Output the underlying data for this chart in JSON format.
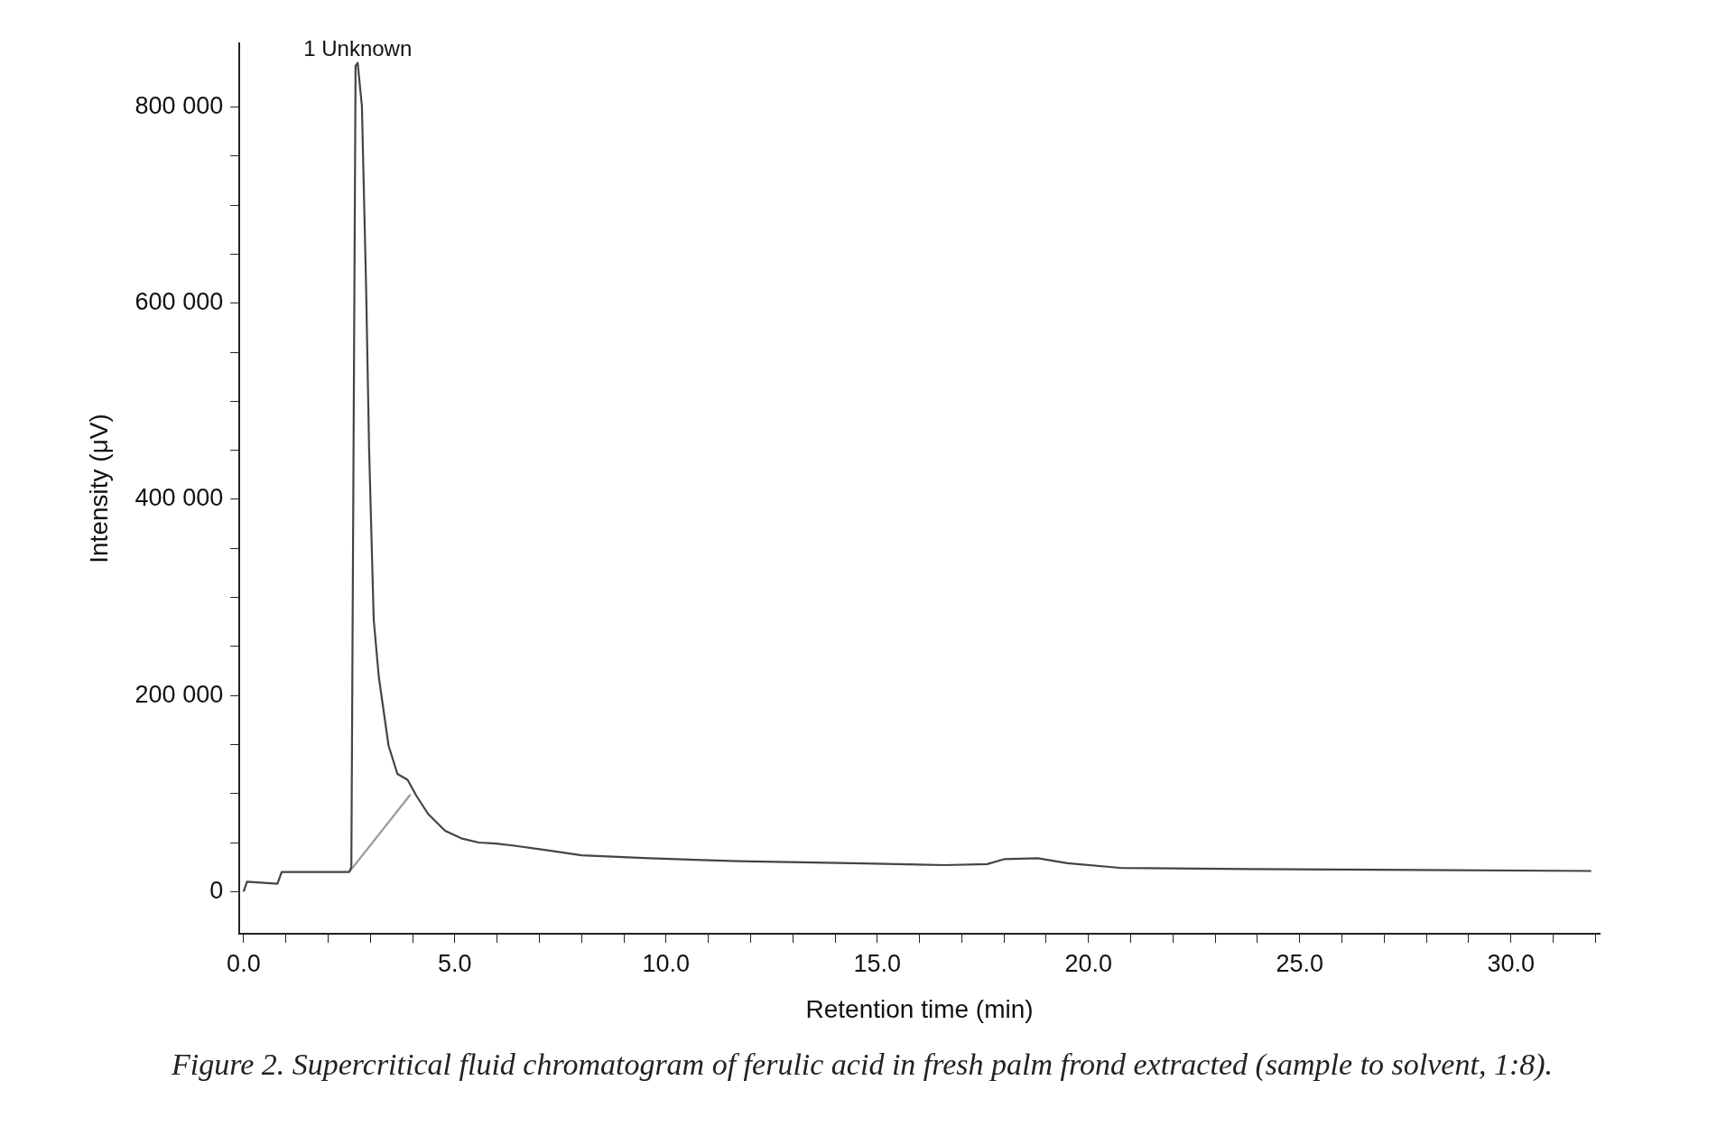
{
  "chart_data": {
    "type": "line",
    "xlabel": "Retention time (min)",
    "ylabel": "Intensity (μV)",
    "annotations": [
      {
        "text": "1 Unknown",
        "x": 2.7,
        "y": 845000
      },
      "Figure 2. Supercritical fluid chromatogram of ferulic acid in fresh palm frond extracted (sample to solvent, 1:8)."
    ],
    "series": [
      {
        "color": "#444444",
        "x": [
          0,
          0.08,
          0.8,
          0.9,
          2.5,
          2.55,
          2.65,
          2.7,
          2.8,
          2.9,
          2.97,
          3.08,
          3.2,
          3.43,
          3.64,
          3.88,
          4.1,
          4.37,
          4.77,
          5.17,
          5.57,
          5.97,
          6.37,
          7.2,
          8.0,
          9.6,
          11.7,
          14.4,
          16.6,
          17.6,
          18.0,
          18.8,
          19.5,
          20.8,
          23.8,
          27.8,
          31.9
        ],
        "values": [
          0,
          10000,
          8000,
          20000,
          20000,
          25000,
          842000,
          845000,
          801000,
          615000,
          452000,
          277000,
          219000,
          149000,
          120000,
          114000,
          97000,
          79000,
          62000,
          54000,
          50000,
          49000,
          47000,
          42000,
          37000,
          34000,
          31000,
          29000,
          27000,
          28000,
          33000,
          34000,
          29000,
          24000,
          23000,
          22000,
          21000
        ]
      },
      {
        "color": "#999999",
        "x": [
          2.5,
          3.95
        ],
        "values": [
          20000,
          99000
        ]
      }
    ],
    "xlim": [
      -0.1,
      32.1
    ],
    "ylim": [
      -43000,
      865000
    ],
    "xticks": [
      {
        "value": 0,
        "label": "0.0"
      },
      {
        "value": 1,
        "label": null
      },
      {
        "value": 2,
        "label": null
      },
      {
        "value": 3,
        "label": null
      },
      {
        "value": 4,
        "label": null
      },
      {
        "value": 5,
        "label": "5.0"
      },
      {
        "value": 6,
        "label": null
      },
      {
        "value": 7,
        "label": null
      },
      {
        "value": 8,
        "label": null
      },
      {
        "value": 9,
        "label": null
      },
      {
        "value": 10,
        "label": "10.0"
      },
      {
        "value": 11,
        "label": null
      },
      {
        "value": 12,
        "label": null
      },
      {
        "value": 13,
        "label": null
      },
      {
        "value": 14,
        "label": null
      },
      {
        "value": 15,
        "label": "15.0"
      },
      {
        "value": 16,
        "label": null
      },
      {
        "value": 17,
        "label": null
      },
      {
        "value": 18,
        "label": null
      },
      {
        "value": 19,
        "label": null
      },
      {
        "value": 20,
        "label": "20.0"
      },
      {
        "value": 21,
        "label": null
      },
      {
        "value": 22,
        "label": null
      },
      {
        "value": 23,
        "label": null
      },
      {
        "value": 24,
        "label": null
      },
      {
        "value": 25,
        "label": "25.0"
      },
      {
        "value": 26,
        "label": null
      },
      {
        "value": 27,
        "label": null
      },
      {
        "value": 28,
        "label": null
      },
      {
        "value": 29,
        "label": null
      },
      {
        "value": 30,
        "label": "30.0"
      },
      {
        "value": 31,
        "label": null
      },
      {
        "value": 32,
        "label": null
      }
    ],
    "yticks": [
      0,
      {
        "value": 50000,
        "label": null
      },
      {
        "value": 100000,
        "label": null
      },
      {
        "value": 150000,
        "label": null
      },
      {
        "value": 200000,
        "label": "200 000"
      },
      {
        "value": 250000,
        "label": null
      },
      {
        "value": 300000,
        "label": null
      },
      {
        "value": 350000,
        "label": null
      },
      {
        "value": 400000,
        "label": "400 000"
      },
      {
        "value": 450000,
        "label": null
      },
      {
        "value": 500000,
        "label": null
      },
      {
        "value": 550000,
        "label": null
      },
      {
        "value": 600000,
        "label": "600 000"
      },
      {
        "value": 650000,
        "label": null
      },
      {
        "value": 700000,
        "label": null
      },
      {
        "value": 750000,
        "label": null
      },
      {
        "value": 800000,
        "label": "800 000"
      }
    ],
    "grid": false,
    "legend": false,
    "marker": "none",
    "line_style": "solid"
  }
}
